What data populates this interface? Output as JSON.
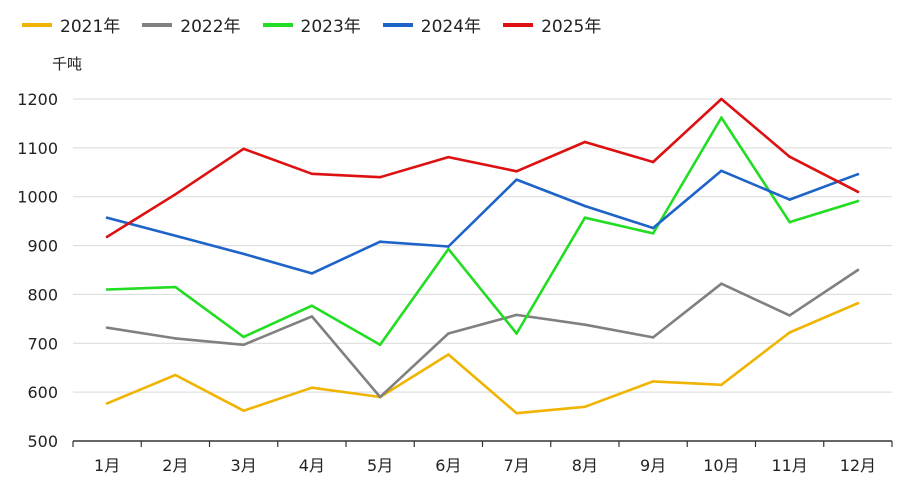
{
  "chart_data": {
    "type": "line",
    "unit_label": "千吨",
    "categories": [
      "1月",
      "2月",
      "3月",
      "4月",
      "5月",
      "6月",
      "7月",
      "8月",
      "9月",
      "10月",
      "11月",
      "12月"
    ],
    "ylim": [
      500,
      1200
    ],
    "yticks": [
      500,
      600,
      700,
      800,
      900,
      1000,
      1100,
      1200
    ],
    "grid": true,
    "legend_position": "top-left",
    "series": [
      {
        "name": "2021年",
        "color": "#F0B400",
        "values": [
          577,
          635,
          562,
          609,
          590,
          677,
          557,
          570,
          622,
          615,
          722,
          782
        ]
      },
      {
        "name": "2022年",
        "color": "#808080",
        "values": [
          732,
          710,
          697,
          755,
          590,
          720,
          758,
          738,
          712,
          822,
          757,
          850
        ]
      },
      {
        "name": "2023年",
        "color": "#22DD22",
        "values": [
          810,
          815,
          713,
          777,
          697,
          893,
          720,
          957,
          925,
          1162,
          948,
          991
        ]
      },
      {
        "name": "2024年",
        "color": "#1E64C8",
        "values": [
          957,
          920,
          883,
          843,
          908,
          898,
          1035,
          981,
          936,
          1053,
          994,
          1046
        ]
      },
      {
        "name": "2025年",
        "color": "#DD1111",
        "values": [
          918,
          1005,
          1098,
          1047,
          1040,
          1081,
          1052,
          1112,
          1071,
          1200,
          1082,
          1010
        ]
      }
    ]
  }
}
